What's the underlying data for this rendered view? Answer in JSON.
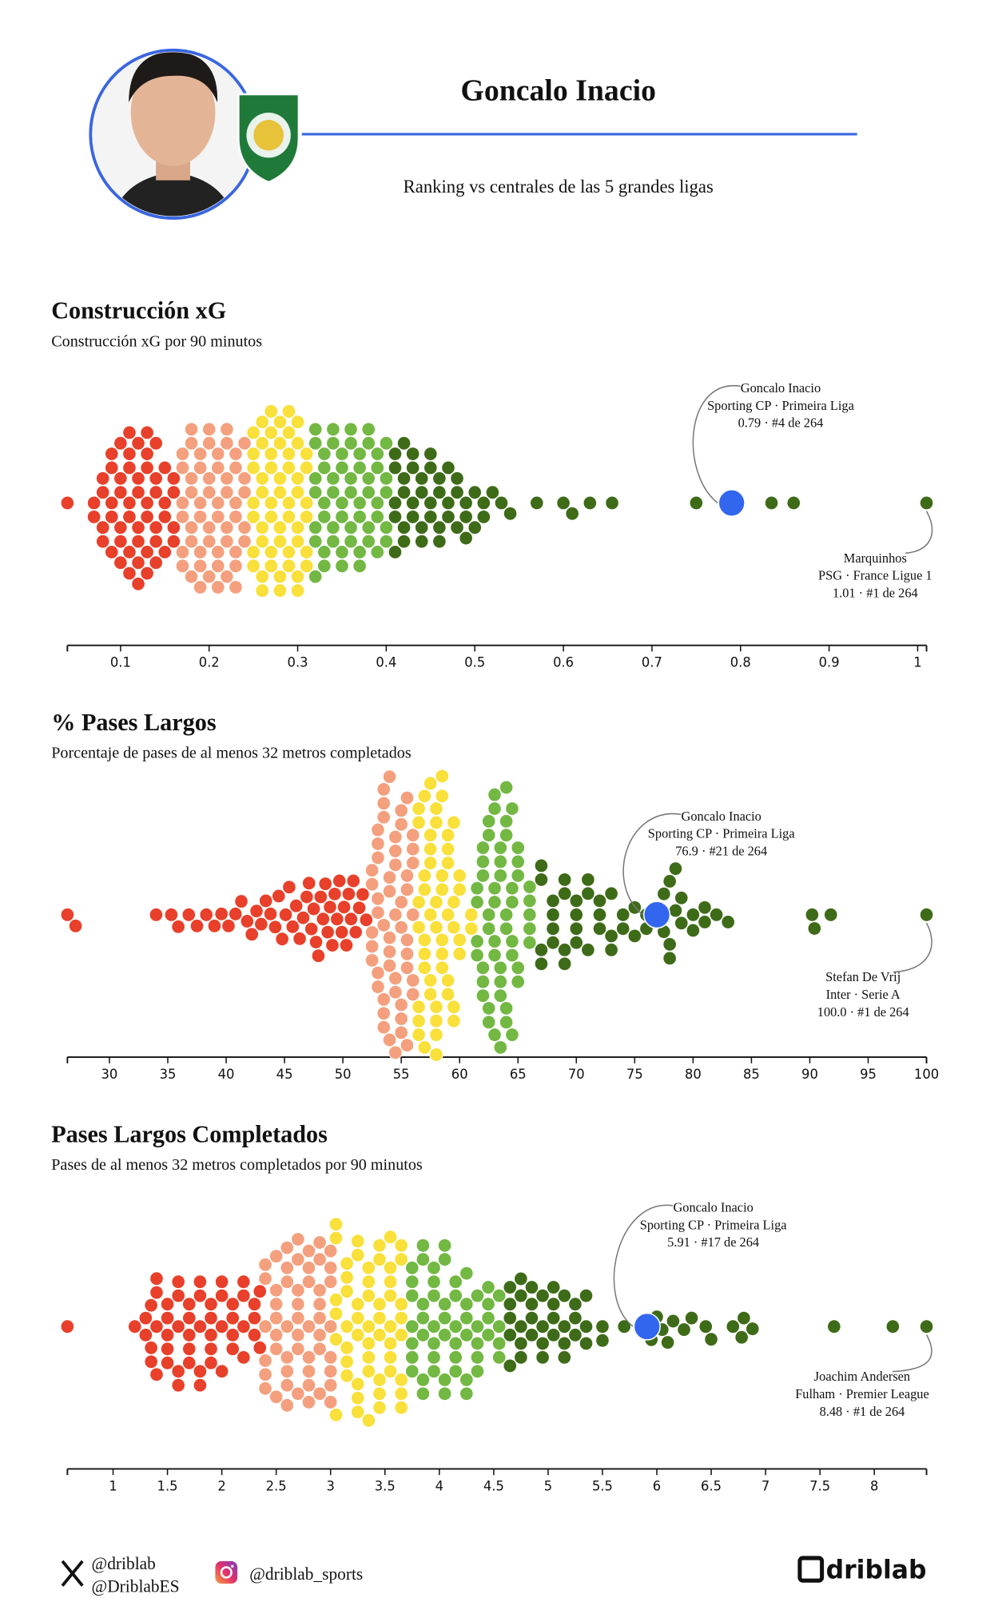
{
  "header": {
    "title": "Goncalo Inacio",
    "subtitle": "Ranking vs centrales de las 5 grandes ligas"
  },
  "chart_data": [
    {
      "type": "beeswarm",
      "title": "Construcción xG",
      "subtitle": "Construcción xG por 90 minutos",
      "xlim": [
        0.04,
        1.01
      ],
      "xticks": [
        0.1,
        0.2,
        0.3,
        0.4,
        0.5,
        0.6,
        0.7,
        0.8,
        0.9,
        1
      ],
      "colors": [
        "#e8402a",
        "#f4a07e",
        "#f9e03a",
        "#72b843",
        "#3e6b18"
      ],
      "highlight_color": "#3366ee",
      "values": [
        0.04,
        0.07,
        0.07,
        0.08,
        0.08,
        0.08,
        0.08,
        0.09,
        0.09,
        0.09,
        0.09,
        0.09,
        0.1,
        0.1,
        0.1,
        0.1,
        0.1,
        0.1,
        0.11,
        0.11,
        0.11,
        0.11,
        0.11,
        0.11,
        0.11,
        0.12,
        0.12,
        0.12,
        0.12,
        0.12,
        0.12,
        0.12,
        0.13,
        0.13,
        0.13,
        0.13,
        0.13,
        0.13,
        0.13,
        0.14,
        0.14,
        0.14,
        0.14,
        0.14,
        0.14,
        0.15,
        0.15,
        0.15,
        0.15,
        0.16,
        0.16,
        0.16,
        0.16,
        0.17,
        0.17,
        0.17,
        0.17,
        0.17,
        0.17,
        0.18,
        0.18,
        0.18,
        0.18,
        0.18,
        0.18,
        0.18,
        0.19,
        0.19,
        0.19,
        0.19,
        0.19,
        0.19,
        0.19,
        0.2,
        0.2,
        0.2,
        0.2,
        0.2,
        0.2,
        0.2,
        0.21,
        0.21,
        0.21,
        0.21,
        0.21,
        0.21,
        0.21,
        0.22,
        0.22,
        0.22,
        0.22,
        0.22,
        0.22,
        0.22,
        0.23,
        0.23,
        0.23,
        0.23,
        0.23,
        0.23,
        0.23,
        0.24,
        0.24,
        0.24,
        0.24,
        0.24,
        0.25,
        0.25,
        0.25,
        0.25,
        0.25,
        0.25,
        0.25,
        0.26,
        0.26,
        0.26,
        0.26,
        0.26,
        0.26,
        0.26,
        0.26,
        0.27,
        0.27,
        0.27,
        0.27,
        0.27,
        0.27,
        0.27,
        0.27,
        0.28,
        0.28,
        0.28,
        0.28,
        0.28,
        0.28,
        0.28,
        0.28,
        0.29,
        0.29,
        0.29,
        0.29,
        0.29,
        0.29,
        0.29,
        0.29,
        0.3,
        0.3,
        0.3,
        0.3,
        0.3,
        0.3,
        0.3,
        0.3,
        0.31,
        0.31,
        0.31,
        0.31,
        0.31,
        0.31,
        0.32,
        0.32,
        0.32,
        0.32,
        0.32,
        0.32,
        0.32,
        0.33,
        0.33,
        0.33,
        0.33,
        0.33,
        0.33,
        0.34,
        0.34,
        0.34,
        0.34,
        0.34,
        0.34,
        0.35,
        0.35,
        0.35,
        0.35,
        0.35,
        0.35,
        0.36,
        0.36,
        0.36,
        0.36,
        0.36,
        0.36,
        0.37,
        0.37,
        0.37,
        0.37,
        0.37,
        0.37,
        0.38,
        0.38,
        0.38,
        0.38,
        0.38,
        0.38,
        0.39,
        0.39,
        0.39,
        0.39,
        0.39,
        0.4,
        0.4,
        0.4,
        0.4,
        0.4,
        0.41,
        0.41,
        0.41,
        0.41,
        0.41,
        0.42,
        0.42,
        0.42,
        0.42,
        0.42,
        0.43,
        0.43,
        0.43,
        0.43,
        0.44,
        0.44,
        0.44,
        0.44,
        0.45,
        0.45,
        0.45,
        0.45,
        0.46,
        0.46,
        0.46,
        0.46,
        0.47,
        0.47,
        0.47,
        0.48,
        0.48,
        0.48,
        0.49,
        0.49,
        0.49,
        0.5,
        0.5,
        0.51,
        0.51,
        0.52,
        0.53,
        0.54,
        0.57,
        0.6,
        0.61,
        0.63,
        0.655,
        0.75,
        0.835,
        0.86
      ],
      "highlight": {
        "name": "Goncalo Inacio",
        "team": "Sporting CP · Primeira Liga",
        "label": "0.79 · #4 de 264",
        "value": 0.79
      },
      "leader": {
        "name": "Marquinhos",
        "team": "PSG · France Ligue 1",
        "label": "1.01 · #1 de 264",
        "value": 1.01
      }
    },
    {
      "type": "beeswarm",
      "title": "% Pases Largos",
      "subtitle": "Porcentaje de pases de al menos 32 metros completados",
      "xlim": [
        26.4,
        100
      ],
      "xticks": [
        30,
        35,
        40,
        45,
        50,
        55,
        60,
        65,
        70,
        75,
        80,
        85,
        90,
        95,
        100
      ],
      "colors": [
        "#e8402a",
        "#f4a07e",
        "#f9e03a",
        "#72b843",
        "#3e6b18"
      ],
      "highlight_color": "#3366ee",
      "values": [
        26.4,
        27.1,
        34,
        35.3,
        35.9,
        36.8,
        37.5,
        38.3,
        39,
        39.6,
        40.2,
        40.8,
        41.3,
        41.8,
        42.2,
        42.6,
        43,
        43.4,
        43.8,
        44.2,
        44.5,
        44.8,
        45.1,
        45.4,
        45.7,
        46,
        46.3,
        46.6,
        46.9,
        47.1,
        47.3,
        47.5,
        47.7,
        47.9,
        48.1,
        48.3,
        48.5,
        48.7,
        48.9,
        49.1,
        49.3,
        49.5,
        49.7,
        49.9,
        50.1,
        50.3,
        50.5,
        50.7,
        50.9,
        51.1,
        51.4,
        51.7,
        52,
        52.5,
        52.5,
        52.5,
        52.5,
        52.5,
        53,
        53,
        53,
        53,
        53,
        53,
        53,
        53.5,
        53.5,
        53.5,
        53.5,
        53.5,
        53.5,
        53.5,
        54,
        54,
        54,
        54,
        54,
        54,
        54,
        54.5,
        54.5,
        54.5,
        54.5,
        54.5,
        54.5,
        54.5,
        55,
        55,
        55,
        55,
        55,
        55,
        55,
        55.5,
        55.5,
        55.5,
        55.5,
        55.5,
        55.5,
        55.5,
        56,
        56,
        56,
        56,
        56,
        56,
        56.5,
        56.5,
        56.5,
        56.5,
        56.5,
        56.5,
        56.5,
        57,
        57,
        57,
        57,
        57,
        57,
        57,
        57.5,
        57.5,
        57.5,
        57.5,
        57.5,
        57.5,
        57.5,
        58,
        58,
        58,
        58,
        58,
        58,
        58,
        58,
        58.5,
        58.5,
        58.5,
        58.5,
        58.5,
        58.5,
        58.5,
        59,
        59,
        59,
        59,
        59,
        59,
        59.5,
        59.5,
        59.5,
        59.5,
        59.5,
        60,
        60,
        60,
        60,
        61,
        61,
        61.5,
        61.5,
        61.5,
        61.5,
        62,
        62,
        62,
        62,
        62,
        62,
        62.5,
        62.5,
        62.5,
        62.5,
        62.5,
        62.5,
        63,
        63,
        63,
        63,
        63,
        63,
        63,
        63.5,
        63.5,
        63.5,
        63.5,
        63.5,
        63.5,
        63.5,
        64,
        64,
        64,
        64,
        64,
        64,
        64,
        64.5,
        64.5,
        64.5,
        64.5,
        64.5,
        64.5,
        65,
        65,
        65,
        65,
        65,
        66,
        66,
        66,
        66,
        66,
        67,
        67,
        67,
        67,
        68,
        68,
        68,
        68,
        69,
        69,
        69,
        69,
        70,
        70,
        70,
        70,
        71,
        71,
        71,
        72,
        72,
        72,
        73,
        73,
        73,
        74,
        74,
        75,
        75,
        76,
        76,
        77.5,
        77.5,
        77.5,
        78,
        78,
        78,
        78.5,
        78.5,
        79,
        79,
        80,
        80,
        81,
        81,
        82,
        83,
        90.2,
        90.4,
        91.8
      ],
      "highlight": {
        "name": "Goncalo Inacio",
        "team": "Sporting CP · Primeira Liga",
        "label": "76.9 · #21 de 264",
        "value": 76.9
      },
      "leader": {
        "name": "Stefan De Vrij",
        "team": "Inter · Serie A",
        "label": "100.0 · #1 de 264",
        "value": 100
      }
    },
    {
      "type": "beeswarm",
      "title": "Pases Largos Completados",
      "subtitle": "Pases de al menos 32 metros completados por 90 minutos",
      "xlim": [
        0.58,
        8.48
      ],
      "xticks": [
        1,
        1.5,
        2,
        2.5,
        3,
        3.5,
        4,
        4.5,
        5,
        5.5,
        6,
        6.5,
        7,
        7.5,
        8
      ],
      "colors": [
        "#e8402a",
        "#f4a07e",
        "#f9e03a",
        "#72b843",
        "#3e6b18"
      ],
      "highlight_color": "#3366ee",
      "values": [
        0.58,
        1.2,
        1.3,
        1.3,
        1.35,
        1.35,
        1.35,
        1.4,
        1.4,
        1.4,
        1.4,
        1.5,
        1.5,
        1.5,
        1.5,
        1.5,
        1.6,
        1.6,
        1.6,
        1.6,
        1.6,
        1.7,
        1.7,
        1.7,
        1.7,
        1.7,
        1.8,
        1.8,
        1.8,
        1.8,
        1.8,
        1.9,
        1.9,
        1.9,
        1.9,
        1.9,
        2,
        2,
        2,
        2,
        2.1,
        2.1,
        2.1,
        2.1,
        2.2,
        2.2,
        2.2,
        2.2,
        2.3,
        2.3,
        2.3,
        2.35,
        2.35,
        2.4,
        2.4,
        2.4,
        2.4,
        2.4,
        2.4,
        2.5,
        2.5,
        2.5,
        2.5,
        2.5,
        2.5,
        2.5,
        2.6,
        2.6,
        2.6,
        2.6,
        2.6,
        2.6,
        2.6,
        2.6,
        2.7,
        2.7,
        2.7,
        2.7,
        2.7,
        2.7,
        2.7,
        2.7,
        2.8,
        2.8,
        2.8,
        2.8,
        2.8,
        2.8,
        2.8,
        2.8,
        2.9,
        2.9,
        2.9,
        2.9,
        2.9,
        2.9,
        2.9,
        2.9,
        3,
        3,
        3,
        3,
        3,
        3,
        3,
        3,
        3.05,
        3.05,
        3.05,
        3.05,
        3.05,
        3.05,
        3.15,
        3.15,
        3.15,
        3.15,
        3.15,
        3.15,
        3.15,
        3.25,
        3.25,
        3.25,
        3.25,
        3.25,
        3.25,
        3.25,
        3.25,
        3.35,
        3.35,
        3.35,
        3.35,
        3.35,
        3.35,
        3.35,
        3.35,
        3.45,
        3.45,
        3.45,
        3.45,
        3.45,
        3.45,
        3.45,
        3.45,
        3.55,
        3.55,
        3.55,
        3.55,
        3.55,
        3.55,
        3.55,
        3.55,
        3.65,
        3.65,
        3.65,
        3.65,
        3.65,
        3.65,
        3.65,
        3.65,
        3.75,
        3.75,
        3.75,
        3.75,
        3.75,
        3.75,
        3.75,
        3.85,
        3.85,
        3.85,
        3.85,
        3.85,
        3.85,
        3.85,
        3.95,
        3.95,
        3.95,
        3.95,
        3.95,
        3.95,
        3.95,
        4.05,
        4.05,
        4.05,
        4.05,
        4.05,
        4.05,
        4.05,
        4.15,
        4.15,
        4.15,
        4.15,
        4.15,
        4.15,
        4.25,
        4.25,
        4.25,
        4.25,
        4.25,
        4.25,
        4.35,
        4.35,
        4.35,
        4.35,
        4.35,
        4.45,
        4.45,
        4.45,
        4.45,
        4.55,
        4.55,
        4.55,
        4.55,
        4.65,
        4.65,
        4.65,
        4.65,
        4.65,
        4.75,
        4.75,
        4.75,
        4.75,
        4.75,
        4.85,
        4.85,
        4.85,
        4.85,
        4.95,
        4.95,
        4.95,
        4.95,
        5.05,
        5.05,
        5.05,
        5.05,
        5.15,
        5.15,
        5.15,
        5.15,
        5.25,
        5.25,
        5.25,
        5.35,
        5.35,
        5.35,
        5.5,
        5.5,
        5.7,
        5.95,
        6,
        6.05,
        6.1,
        6.15,
        6.25,
        6.32,
        6.45,
        6.5,
        6.7,
        6.78,
        6.8,
        6.88,
        7.63,
        8.17
      ],
      "highlight": {
        "name": "Goncalo Inacio",
        "team": "Sporting CP · Primeira Liga",
        "label": "5.91 · #17 de 264",
        "value": 5.91
      },
      "leader": {
        "name": "Joachim Andersen",
        "team": "Fulham · Premier League",
        "label": "8.48 · #1 de 264",
        "value": 8.48
      }
    }
  ],
  "footer": {
    "twitter": [
      "@driblab",
      "@DriblabES"
    ],
    "instagram": "@driblab_sports",
    "brand": "driblab"
  }
}
